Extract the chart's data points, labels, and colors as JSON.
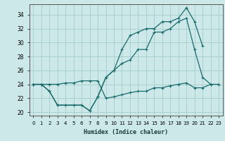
{
  "xlabel": "Humidex (Indice chaleur)",
  "bg_color": "#cce8e8",
  "grid_color": "#aad0d0",
  "line_color": "#1a6b6b",
  "xlim": [
    -0.5,
    23.5
  ],
  "ylim": [
    19.5,
    35.5
  ],
  "xticks": [
    0,
    1,
    2,
    3,
    4,
    5,
    6,
    7,
    8,
    9,
    10,
    11,
    12,
    13,
    14,
    15,
    16,
    17,
    18,
    19,
    20,
    21,
    22,
    23
  ],
  "yticks": [
    20,
    22,
    24,
    26,
    28,
    30,
    32,
    34
  ],
  "series": [
    {
      "x": [
        0,
        1,
        2,
        3,
        4,
        5,
        6,
        7,
        8,
        9,
        10,
        11,
        12,
        13,
        14,
        15,
        16,
        17,
        18,
        19,
        20,
        21
      ],
      "y": [
        24,
        24,
        23,
        21,
        21,
        21,
        21,
        20.2,
        22.2,
        25,
        26,
        29,
        31,
        31.5,
        32,
        32,
        33,
        33,
        33.5,
        35,
        33,
        29.5
      ]
    },
    {
      "x": [
        0,
        1,
        2,
        3,
        4,
        5,
        6,
        7,
        8,
        9,
        10,
        11,
        12,
        13,
        14,
        15,
        16,
        17,
        18,
        19,
        20,
        21,
        22
      ],
      "y": [
        24,
        24,
        23,
        21,
        21,
        21,
        21,
        20.2,
        22.2,
        25,
        26,
        27,
        27.5,
        29,
        29,
        31.5,
        31.5,
        32,
        33,
        33.5,
        29,
        25,
        24
      ]
    },
    {
      "x": [
        0,
        1,
        2,
        3,
        4,
        5,
        6,
        7,
        8,
        9,
        10,
        11,
        12,
        13,
        14,
        15,
        16,
        17,
        18,
        19,
        20,
        21,
        22,
        23
      ],
      "y": [
        24,
        24,
        24,
        24,
        24.2,
        24.2,
        24.5,
        24.5,
        24.5,
        22,
        22.2,
        22.5,
        22.8,
        23,
        23,
        23.5,
        23.5,
        23.8,
        24,
        24.2,
        23.5,
        23.5,
        24,
        24
      ]
    }
  ]
}
